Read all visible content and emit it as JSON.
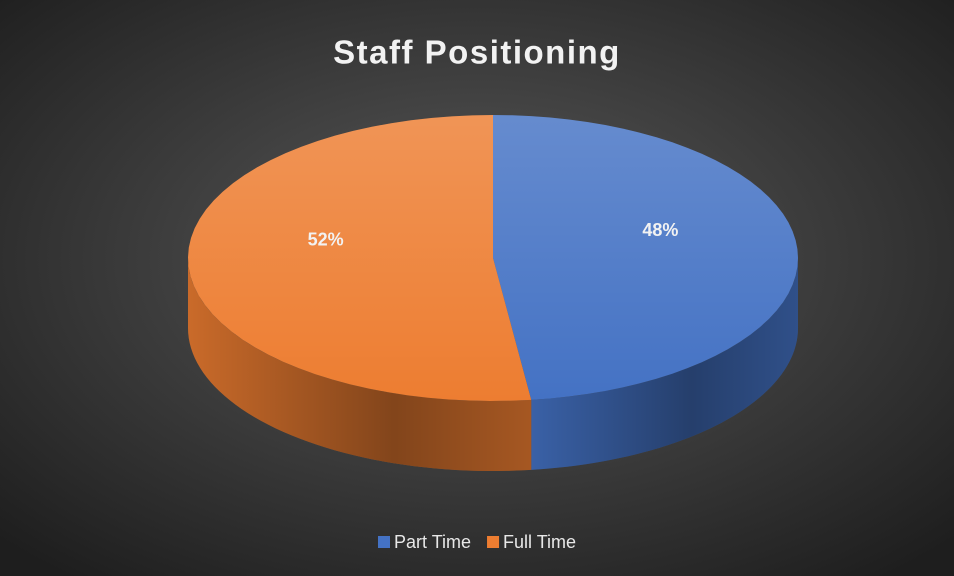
{
  "chart_data": {
    "type": "pie",
    "title": "Staff Positioning",
    "categories": [
      "Part Time",
      "Full Time"
    ],
    "values": [
      48,
      52
    ],
    "value_labels": [
      "48%",
      "52%"
    ],
    "colors": [
      "#4472c4",
      "#ed7d31"
    ],
    "legend": "bottom"
  }
}
